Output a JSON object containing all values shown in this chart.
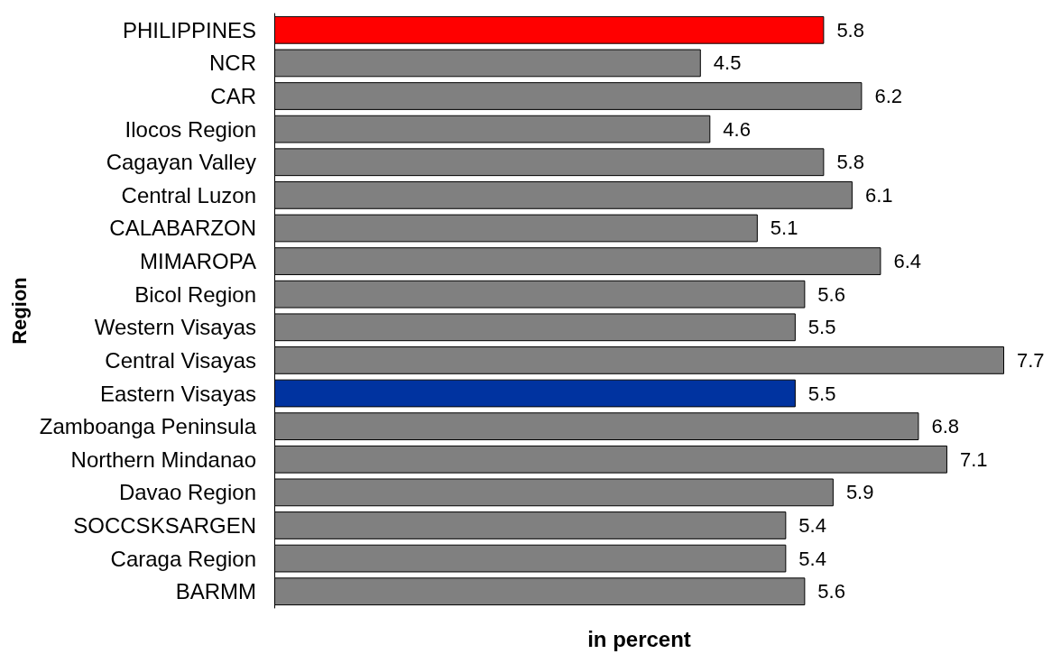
{
  "chart_data": {
    "type": "bar",
    "orientation": "horizontal",
    "xlabel": "in percent",
    "ylabel": "Region",
    "categories": [
      "PHILIPPINES",
      "NCR",
      "CAR",
      "Ilocos Region",
      "Cagayan Valley",
      "Central Luzon",
      "CALABARZON",
      "MIMAROPA",
      "Bicol Region",
      "Western Visayas",
      "Central Visayas",
      "Eastern Visayas",
      "Zamboanga Peninsula",
      "Northern Mindanao",
      "Davao Region",
      "SOCCSKSARGEN",
      "Caraga Region",
      "BARMM"
    ],
    "values": [
      5.8,
      4.5,
      6.2,
      4.6,
      5.8,
      6.1,
      5.1,
      6.4,
      5.6,
      5.5,
      7.7,
      5.5,
      6.8,
      7.1,
      5.9,
      5.4,
      5.4,
      5.6
    ],
    "colors": [
      "#ff0000",
      "#808080",
      "#808080",
      "#808080",
      "#808080",
      "#808080",
      "#808080",
      "#808080",
      "#808080",
      "#808080",
      "#808080",
      "#0033a0",
      "#808080",
      "#808080",
      "#808080",
      "#808080",
      "#808080",
      "#808080"
    ],
    "data_labels": true,
    "grid": false
  }
}
